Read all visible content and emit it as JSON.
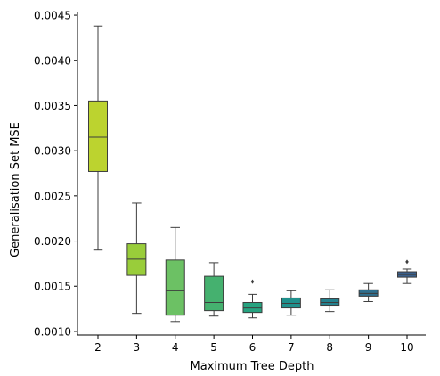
{
  "chart_data": {
    "type": "box",
    "xlabel": "Maximum Tree Depth",
    "ylabel": "Generalisation Set MSE",
    "ylim": [
      0.00096,
      0.00454
    ],
    "yticks": [
      "0.0010",
      "0.0015",
      "0.0020",
      "0.0025",
      "0.0030",
      "0.0035",
      "0.0040",
      "0.0045"
    ],
    "ytick_values": [
      0.001,
      0.0015,
      0.002,
      0.0025,
      0.003,
      0.0035,
      0.004,
      0.0045
    ],
    "categories": [
      "2",
      "3",
      "4",
      "5",
      "6",
      "7",
      "8",
      "9",
      "10"
    ],
    "boxes": [
      {
        "min": 0.0019,
        "q1": 0.00277,
        "median": 0.00315,
        "q3": 0.00355,
        "max": 0.00438,
        "outliers": [],
        "color": "#bcd32f"
      },
      {
        "min": 0.0012,
        "q1": 0.00162,
        "median": 0.0018,
        "q3": 0.00197,
        "max": 0.00242,
        "outliers": [],
        "color": "#99cd3a"
      },
      {
        "min": 0.00111,
        "q1": 0.00118,
        "median": 0.00145,
        "q3": 0.00179,
        "max": 0.00215,
        "outliers": [],
        "color": "#6cc164"
      },
      {
        "min": 0.00117,
        "q1": 0.00123,
        "median": 0.00132,
        "q3": 0.00161,
        "max": 0.00176,
        "outliers": [],
        "color": "#45b16f"
      },
      {
        "min": 0.00115,
        "q1": 0.00121,
        "median": 0.00126,
        "q3": 0.00132,
        "max": 0.00141,
        "outliers": [
          0.00155
        ],
        "color": "#26a380"
      },
      {
        "min": 0.00118,
        "q1": 0.00126,
        "median": 0.00131,
        "q3": 0.00137,
        "max": 0.00145,
        "outliers": [],
        "color": "#20908c"
      },
      {
        "min": 0.00122,
        "q1": 0.00129,
        "median": 0.00132,
        "q3": 0.00136,
        "max": 0.00146,
        "outliers": [],
        "color": "#24818e"
      },
      {
        "min": 0.00133,
        "q1": 0.00139,
        "median": 0.00142,
        "q3": 0.00146,
        "max": 0.00153,
        "outliers": [],
        "color": "#2f6e8d"
      },
      {
        "min": 0.00153,
        "q1": 0.0016,
        "median": 0.00163,
        "q3": 0.00166,
        "max": 0.00169,
        "outliers": [
          0.00177
        ],
        "color": "#3a5f8b"
      }
    ]
  }
}
